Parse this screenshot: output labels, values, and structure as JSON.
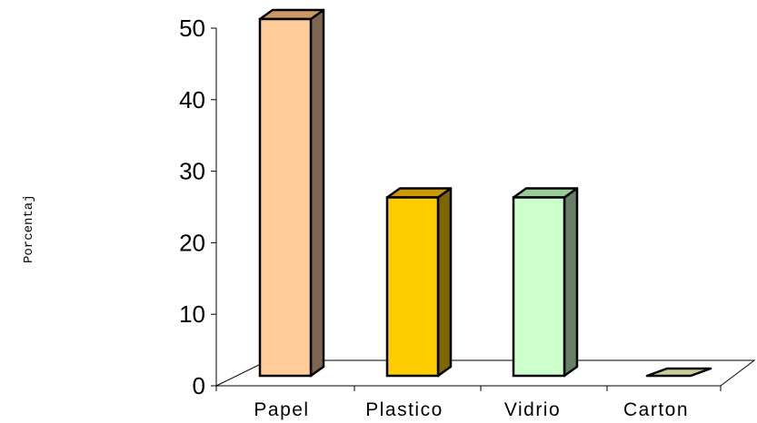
{
  "chart_data": {
    "type": "bar",
    "style": "3d",
    "title": "",
    "xlabel": "",
    "ylabel": "Porcentaj",
    "categories": [
      "Papel",
      "Plastico",
      "Vidrio",
      "Carton"
    ],
    "values": [
      50,
      25,
      25,
      0
    ],
    "ylim": [
      0,
      50
    ],
    "yticks": [
      0,
      10,
      20,
      30,
      40,
      50
    ],
    "grid": false,
    "legend": "none",
    "colors": {
      "front": [
        "#ffcc99",
        "#ffcc00",
        "#ccffcc",
        "#cccc99"
      ],
      "side": [
        "#806650",
        "#806600",
        "#668066",
        "#666650"
      ],
      "top": [
        "#cc9966",
        "#cc9900",
        "#99cc99",
        "#999966"
      ]
    }
  }
}
